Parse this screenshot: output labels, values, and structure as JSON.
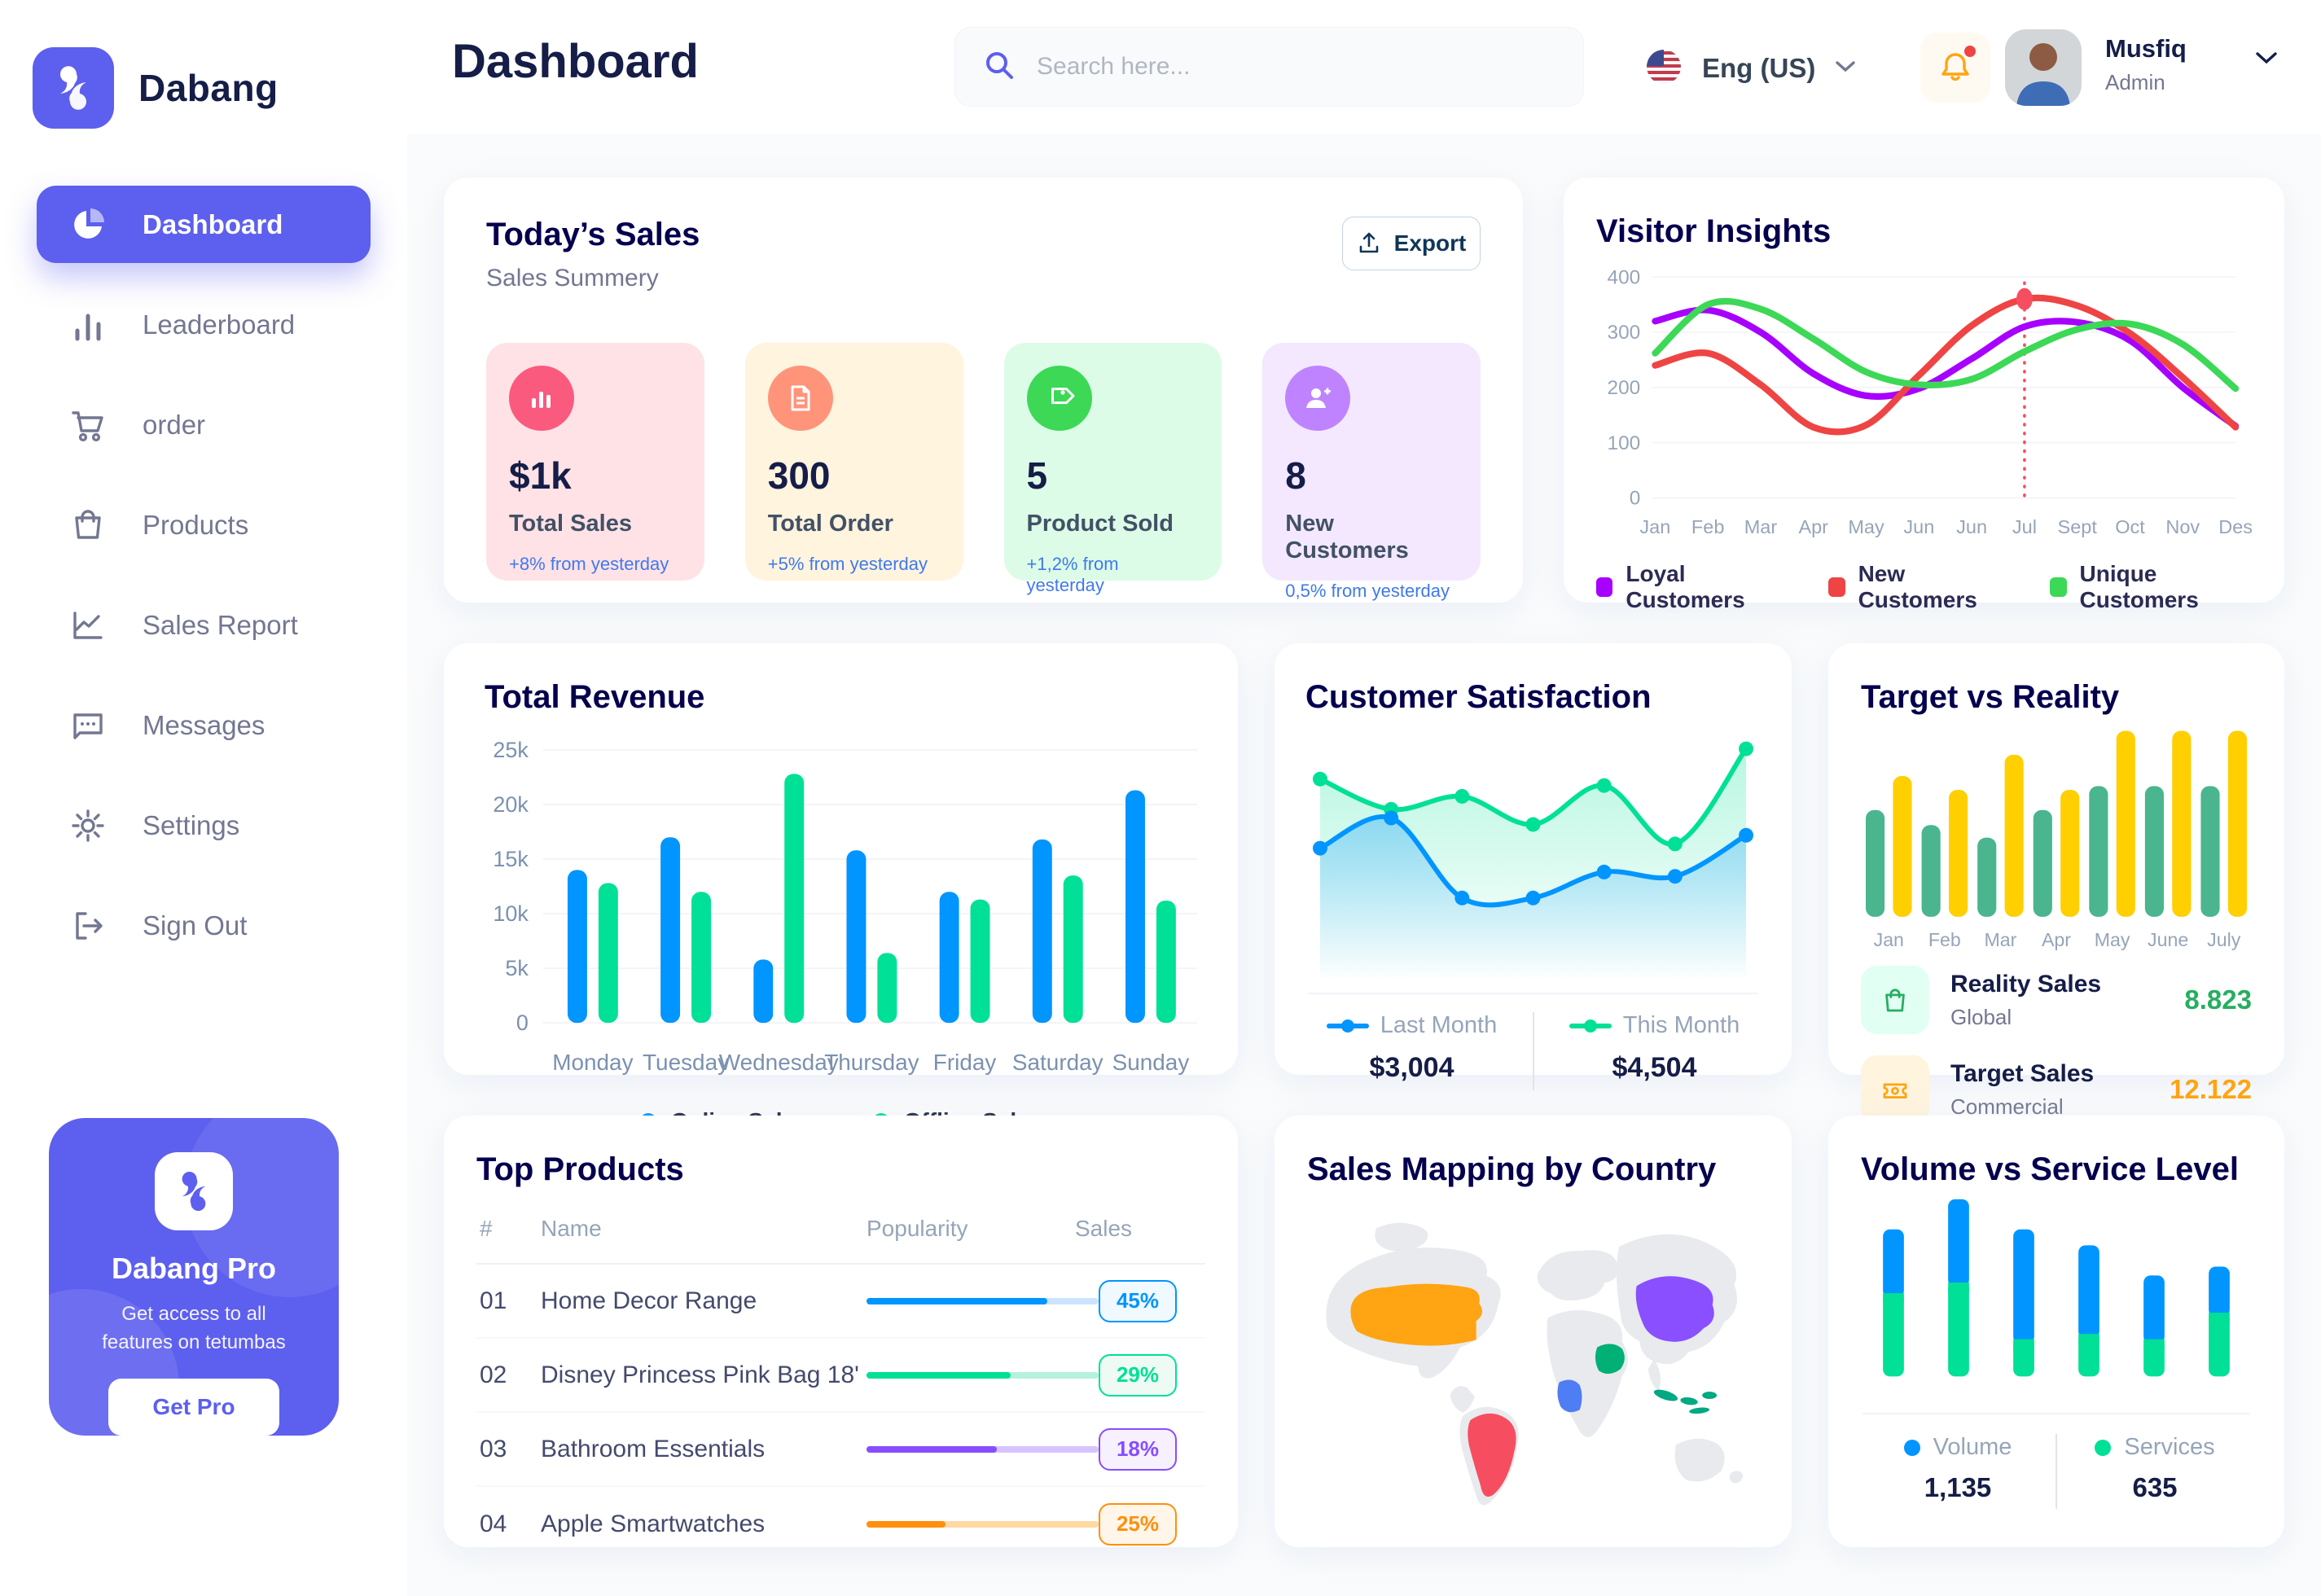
{
  "app": {
    "brand": "Dabang"
  },
  "header": {
    "title": "Dashboard",
    "search_placeholder": "Search here...",
    "language": "Eng (US)",
    "user_name": "Musfiq",
    "user_role": "Admin"
  },
  "sidebar": {
    "items": [
      {
        "label": "Dashboard"
      },
      {
        "label": "Leaderboard"
      },
      {
        "label": "order"
      },
      {
        "label": "Products"
      },
      {
        "label": "Sales Report"
      },
      {
        "label": "Messages"
      },
      {
        "label": "Settings"
      },
      {
        "label": "Sign Out"
      }
    ],
    "pro": {
      "title": "Dabang Pro",
      "subtitle": "Get access to all features on tetumbas",
      "cta": "Get Pro"
    }
  },
  "today_sales": {
    "title": "Today’s Sales",
    "subtitle": "Sales Summery",
    "export_label": "Export",
    "cards": [
      {
        "value": "$1k",
        "label": "Total Sales",
        "delta": "+8% from yesterday",
        "bg": "#FFE2E5",
        "icon_bg": "#FA5A7D",
        "icon": "bar-chart-icon"
      },
      {
        "value": "300",
        "label": "Total Order",
        "delta": "+5% from yesterday",
        "bg": "#FFF4DE",
        "icon_bg": "#FF947A",
        "icon": "file-icon"
      },
      {
        "value": "5",
        "label": "Product Sold",
        "delta": "+1,2% from yesterday",
        "bg": "#DCFCE7",
        "icon_bg": "#3CD856",
        "icon": "tag-icon"
      },
      {
        "value": "8",
        "label": "New Customers",
        "delta": "0,5% from yesterday",
        "bg": "#F3E8FF",
        "icon_bg": "#BF83FF",
        "icon": "user-plus-icon"
      }
    ]
  },
  "visitor_insights": {
    "title": "Visitor Insights",
    "chart": {
      "type": "line",
      "months": [
        "Jan",
        "Feb",
        "Mar",
        "Apr",
        "May",
        "Jun",
        "Jun",
        "Jul",
        "Sept",
        "Oct",
        "Nov",
        "Des"
      ],
      "yticks": [
        0,
        100,
        200,
        300,
        400
      ],
      "ymax": 400,
      "series": [
        {
          "name": "Loyal Customers",
          "color": "#A700FF",
          "values": [
            320,
            340,
            300,
            225,
            185,
            198,
            252,
            310,
            318,
            285,
            200,
            130
          ]
        },
        {
          "name": "New Customers",
          "color": "#EF4444",
          "values": [
            240,
            262,
            205,
            128,
            132,
            222,
            312,
            360,
            348,
            298,
            218,
            128
          ]
        },
        {
          "name": "Unique Customers",
          "color": "#3CD856",
          "values": [
            262,
            350,
            342,
            288,
            228,
            205,
            215,
            265,
            305,
            315,
            278,
            198
          ]
        }
      ],
      "marker": {
        "series": "New Customers",
        "month_index": 7,
        "value": 360
      }
    }
  },
  "total_revenue": {
    "title": "Total Revenue",
    "chart": {
      "type": "bar",
      "categories": [
        "Monday",
        "Tuesday",
        "Wednesday",
        "Thursday",
        "Friday",
        "Saturday",
        "Sunday"
      ],
      "yticks": [
        0,
        5,
        10,
        15,
        20,
        25
      ],
      "ylabels": [
        "0",
        "5k",
        "10k",
        "15k",
        "20k",
        "25k"
      ],
      "ymax": 25,
      "series": [
        {
          "name": "Online Sales",
          "color": "#0095FF",
          "values": [
            14,
            17,
            5.8,
            15.8,
            12,
            16.8,
            21.3
          ]
        },
        {
          "name": "Offline Sales",
          "color": "#00E096",
          "values": [
            12.8,
            12,
            22.8,
            6.4,
            11.3,
            13.5,
            11.2
          ]
        }
      ]
    }
  },
  "customer_satisfaction": {
    "title": "Customer Satisfaction",
    "chart": {
      "type": "area",
      "series": [
        {
          "name": "Last Month",
          "color": "#0095FF",
          "values": [
            50,
            64,
            27,
            27,
            39,
            37,
            56
          ]
        },
        {
          "name": "This Month",
          "color": "#00E096",
          "values": [
            82,
            68,
            74,
            61,
            79,
            52,
            96
          ]
        }
      ]
    },
    "legend": {
      "last_month_label": "Last Month",
      "last_month_value": "$3,004",
      "this_month_label": "This Month",
      "this_month_value": "$4,504"
    }
  },
  "target_vs_reality": {
    "title": "Target vs Reality",
    "chart": {
      "type": "bar",
      "categories": [
        "Jan",
        "Feb",
        "Mar",
        "Apr",
        "May",
        "June",
        "July"
      ],
      "ymax": 15,
      "series": [
        {
          "name": "Reality Sales",
          "color": "#4AB58E",
          "values": [
            8.5,
            7.3,
            6.3,
            8.5,
            10.4,
            10.4,
            10.4
          ]
        },
        {
          "name": "Target Sales",
          "color": "#FFCF00",
          "values": [
            11.2,
            10.1,
            12.9,
            10.1,
            14.8,
            14.8,
            14.8
          ]
        }
      ]
    },
    "legend": [
      {
        "title": "Reality Sales",
        "subtitle": "Global",
        "value": "8.823",
        "value_color": "#27AE60",
        "icon_bg": "#E2FFF3",
        "icon": "bag-icon"
      },
      {
        "title": "Target Sales",
        "subtitle": "Commercial",
        "value": "12.122",
        "value_color": "#FFA412",
        "icon_bg": "#FFF4DE",
        "icon": "ticket-icon"
      }
    ]
  },
  "top_products": {
    "title": "Top Products",
    "columns": {
      "num": "#",
      "name": "Name",
      "popularity": "Popularity",
      "sales": "Sales"
    },
    "rows": [
      {
        "num": "01",
        "name": "Home Decor Range",
        "popularity": 78,
        "sales": "45%",
        "color": "#0095FF",
        "track": "#CDE4FF",
        "badge_bg": "#F0F9FF"
      },
      {
        "num": "02",
        "name": "Disney Princess Pink Bag 18'",
        "popularity": 62,
        "sales": "29%",
        "color": "#00E096",
        "track": "#B5F2DC",
        "badge_bg": "#EEFBF5"
      },
      {
        "num": "03",
        "name": "Bathroom Essentials",
        "popularity": 56,
        "sales": "18%",
        "color": "#884DFF",
        "track": "#D7C4FF",
        "badge_bg": "#F7F1FF"
      },
      {
        "num": "04",
        "name": "Apple Smartwatches",
        "popularity": 34,
        "sales": "25%",
        "color": "#FF8F0D",
        "track": "#FFD9A3",
        "badge_bg": "#FFF6E9"
      }
    ]
  },
  "sales_map": {
    "title": "Sales Mapping by Country",
    "land_color": "#E8EAEE",
    "countries": [
      {
        "name": "United States",
        "color": "#FFA412"
      },
      {
        "name": "Brazil",
        "color": "#F64E60"
      },
      {
        "name": "DR Congo",
        "color": "#4F7DF3"
      },
      {
        "name": "Saudi Arabia",
        "color": "#00B074"
      },
      {
        "name": "China",
        "color": "#8A4FFF"
      },
      {
        "name": "Indonesia",
        "color": "#00A982"
      }
    ]
  },
  "volume_service": {
    "title": "Volume vs Service Level",
    "chart": {
      "type": "stacked-bar",
      "ymax": 100,
      "series": [
        {
          "name": "Volume",
          "color": "#0095FF",
          "values": [
            36,
            47,
            62,
            50,
            36,
            26
          ]
        },
        {
          "name": "Services",
          "color": "#00E096",
          "values": [
            47,
            53,
            21,
            24,
            21,
            36
          ]
        }
      ]
    },
    "legend": {
      "volume_label": "Volume",
      "volume_value": "1,135",
      "services_label": "Services",
      "services_value": "635"
    }
  }
}
